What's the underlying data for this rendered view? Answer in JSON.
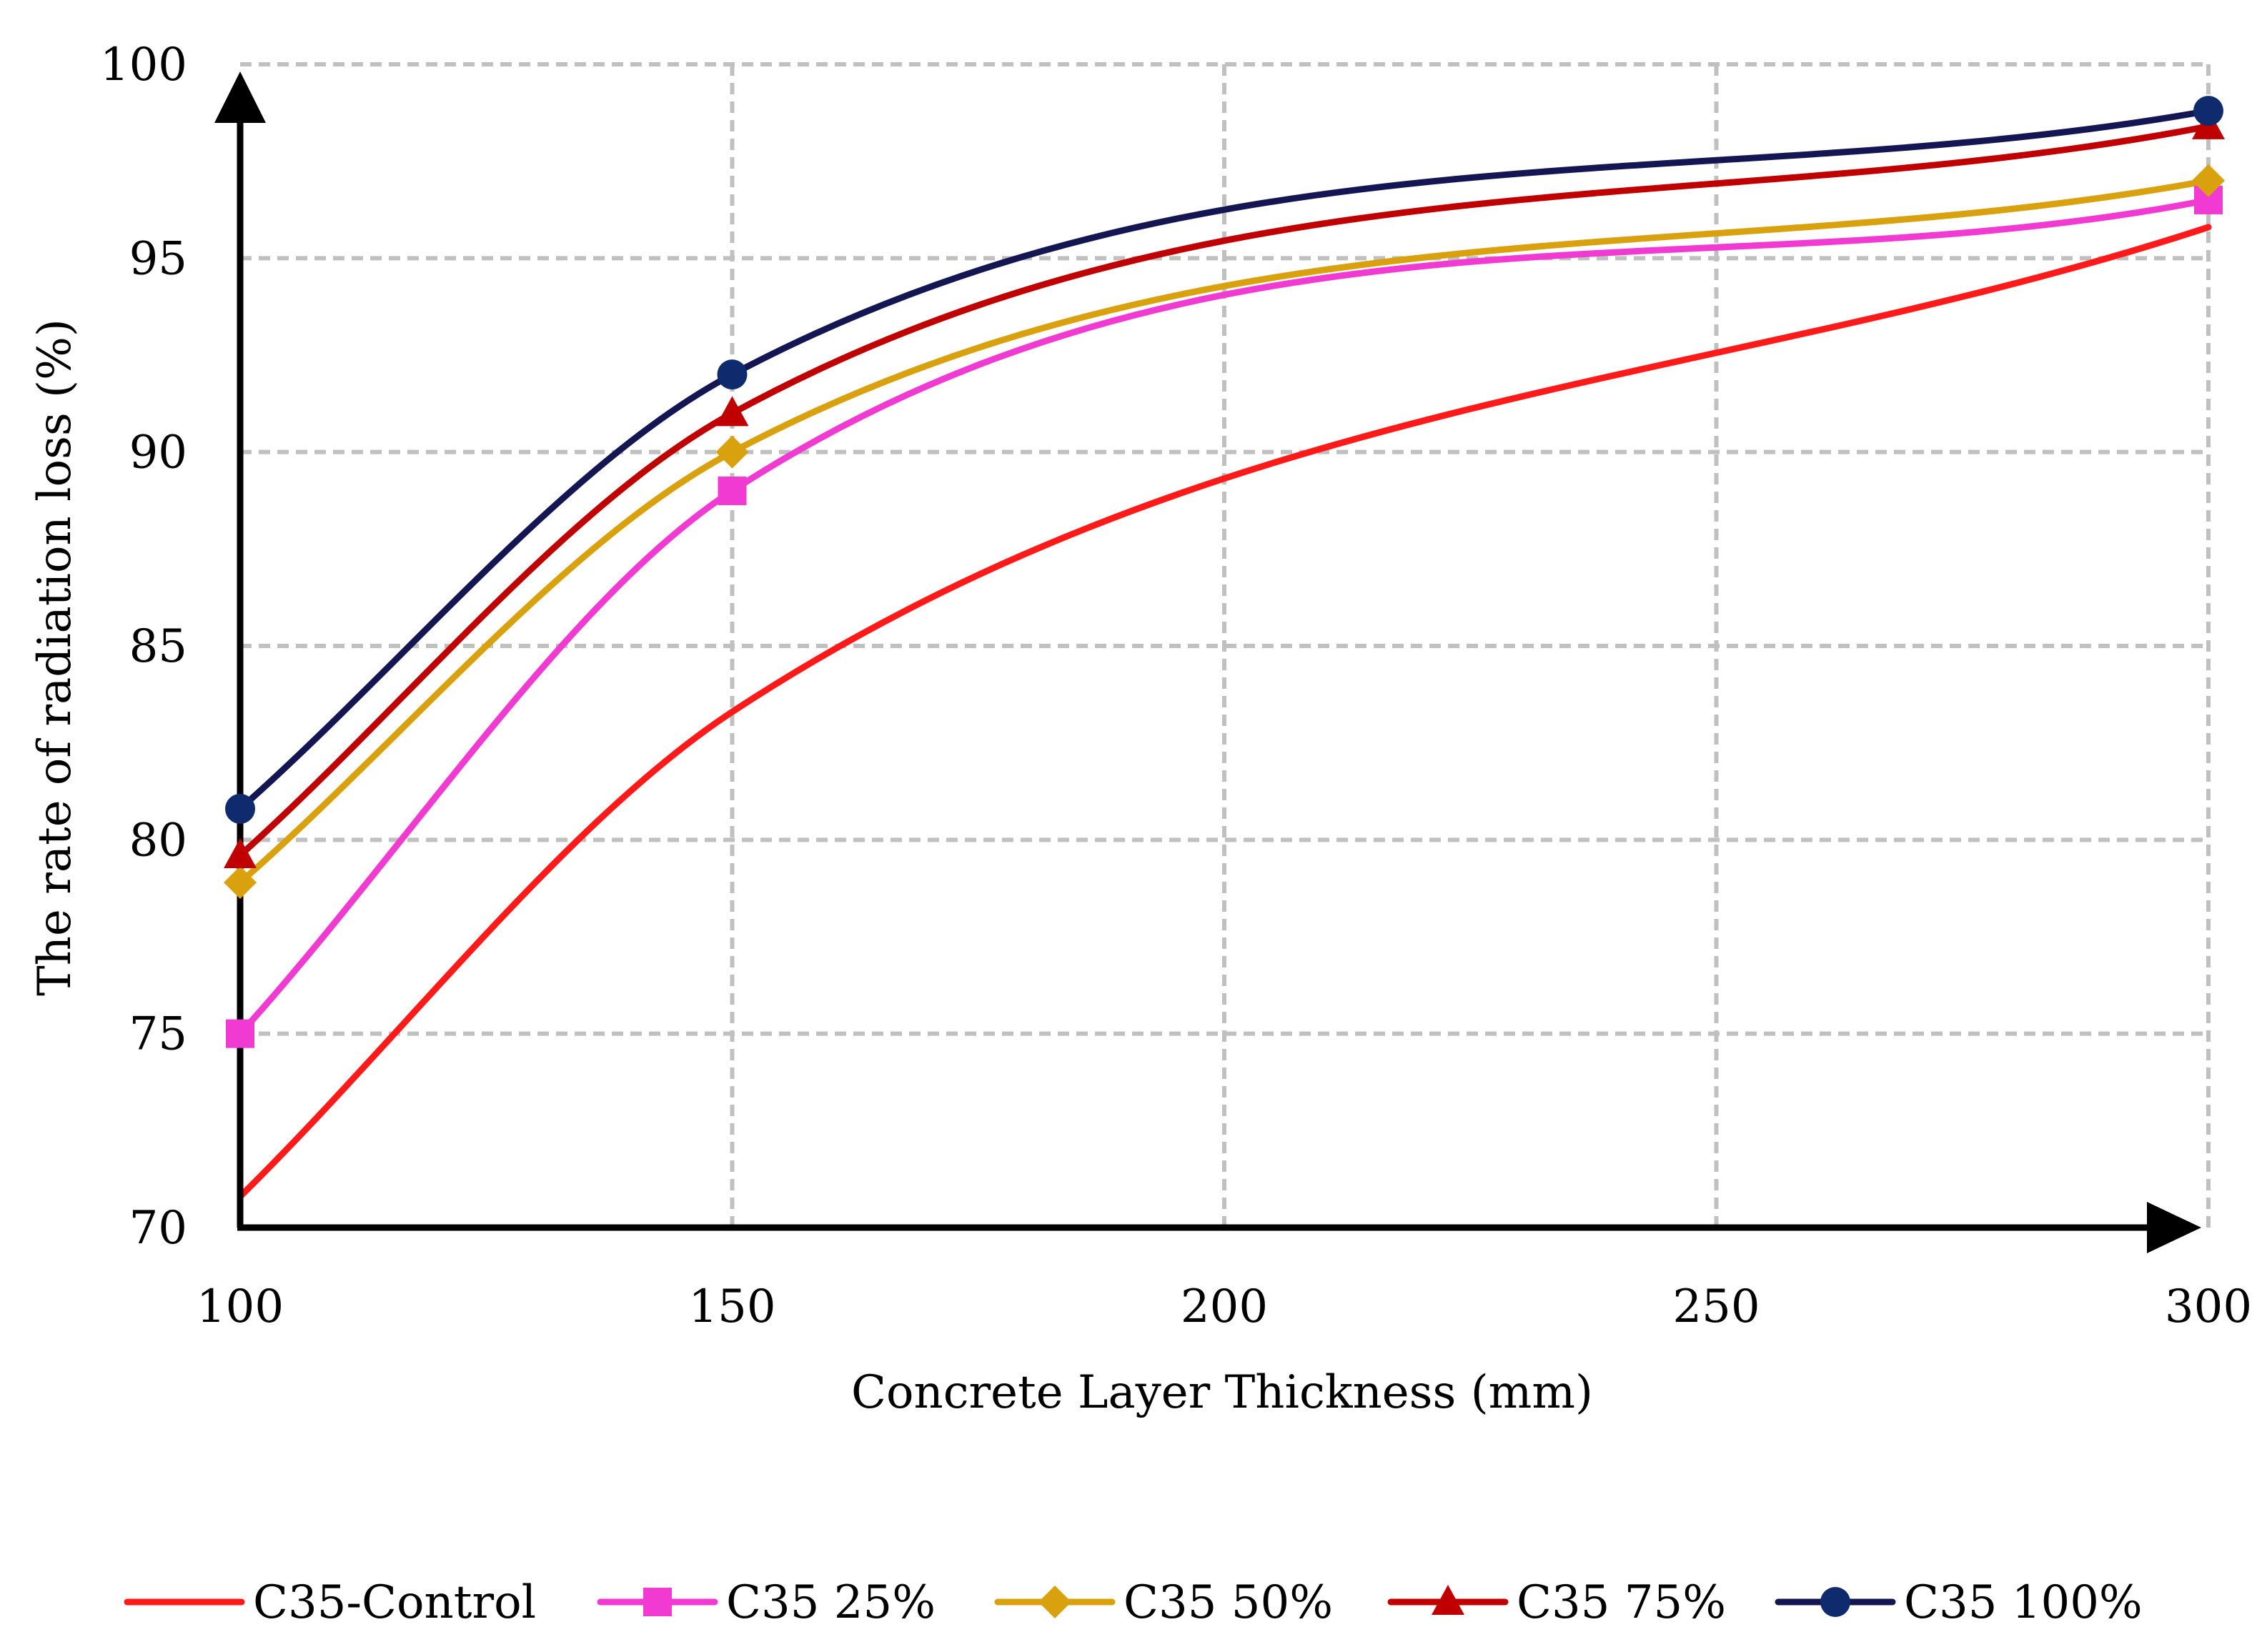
{
  "chart_data": {
    "type": "line",
    "title": "",
    "xlabel": "Concrete Layer Thickness (mm)",
    "ylabel": "The rate of radiation loss (%)",
    "x_ticks": [
      "100",
      "150",
      "200",
      "250",
      "300"
    ],
    "y_ticks": [
      "70",
      "75",
      "80",
      "85",
      "90",
      "95",
      "100"
    ],
    "xlim": [
      100,
      300
    ],
    "ylim": [
      70,
      100
    ],
    "grid": true,
    "legend_position": "bottom",
    "series": [
      {
        "name": "C35-Control",
        "color": "#ff1a1a",
        "marker": "none",
        "x": [
          100,
          150,
          300
        ],
        "values": [
          70.8,
          83.3,
          95.8
        ]
      },
      {
        "name": "C35 25%",
        "color": "#f03ad2",
        "marker": "square",
        "x": [
          100,
          150,
          300
        ],
        "values": [
          75.0,
          89.0,
          96.5
        ]
      },
      {
        "name": "C35 50%",
        "color": "#d9a10e",
        "marker": "diamond",
        "x": [
          100,
          150,
          300
        ],
        "values": [
          78.9,
          90.0,
          97.0
        ]
      },
      {
        "name": "C35 75%",
        "color": "#c00000",
        "marker": "triangle",
        "x": [
          100,
          150,
          300
        ],
        "values": [
          79.6,
          91.0,
          98.4
        ]
      },
      {
        "name": "C35 100%",
        "color": "#141654",
        "marker": "circle",
        "marker_color": "#102a6e",
        "x": [
          100,
          150,
          300
        ],
        "values": [
          80.8,
          92.0,
          98.8
        ]
      }
    ]
  }
}
